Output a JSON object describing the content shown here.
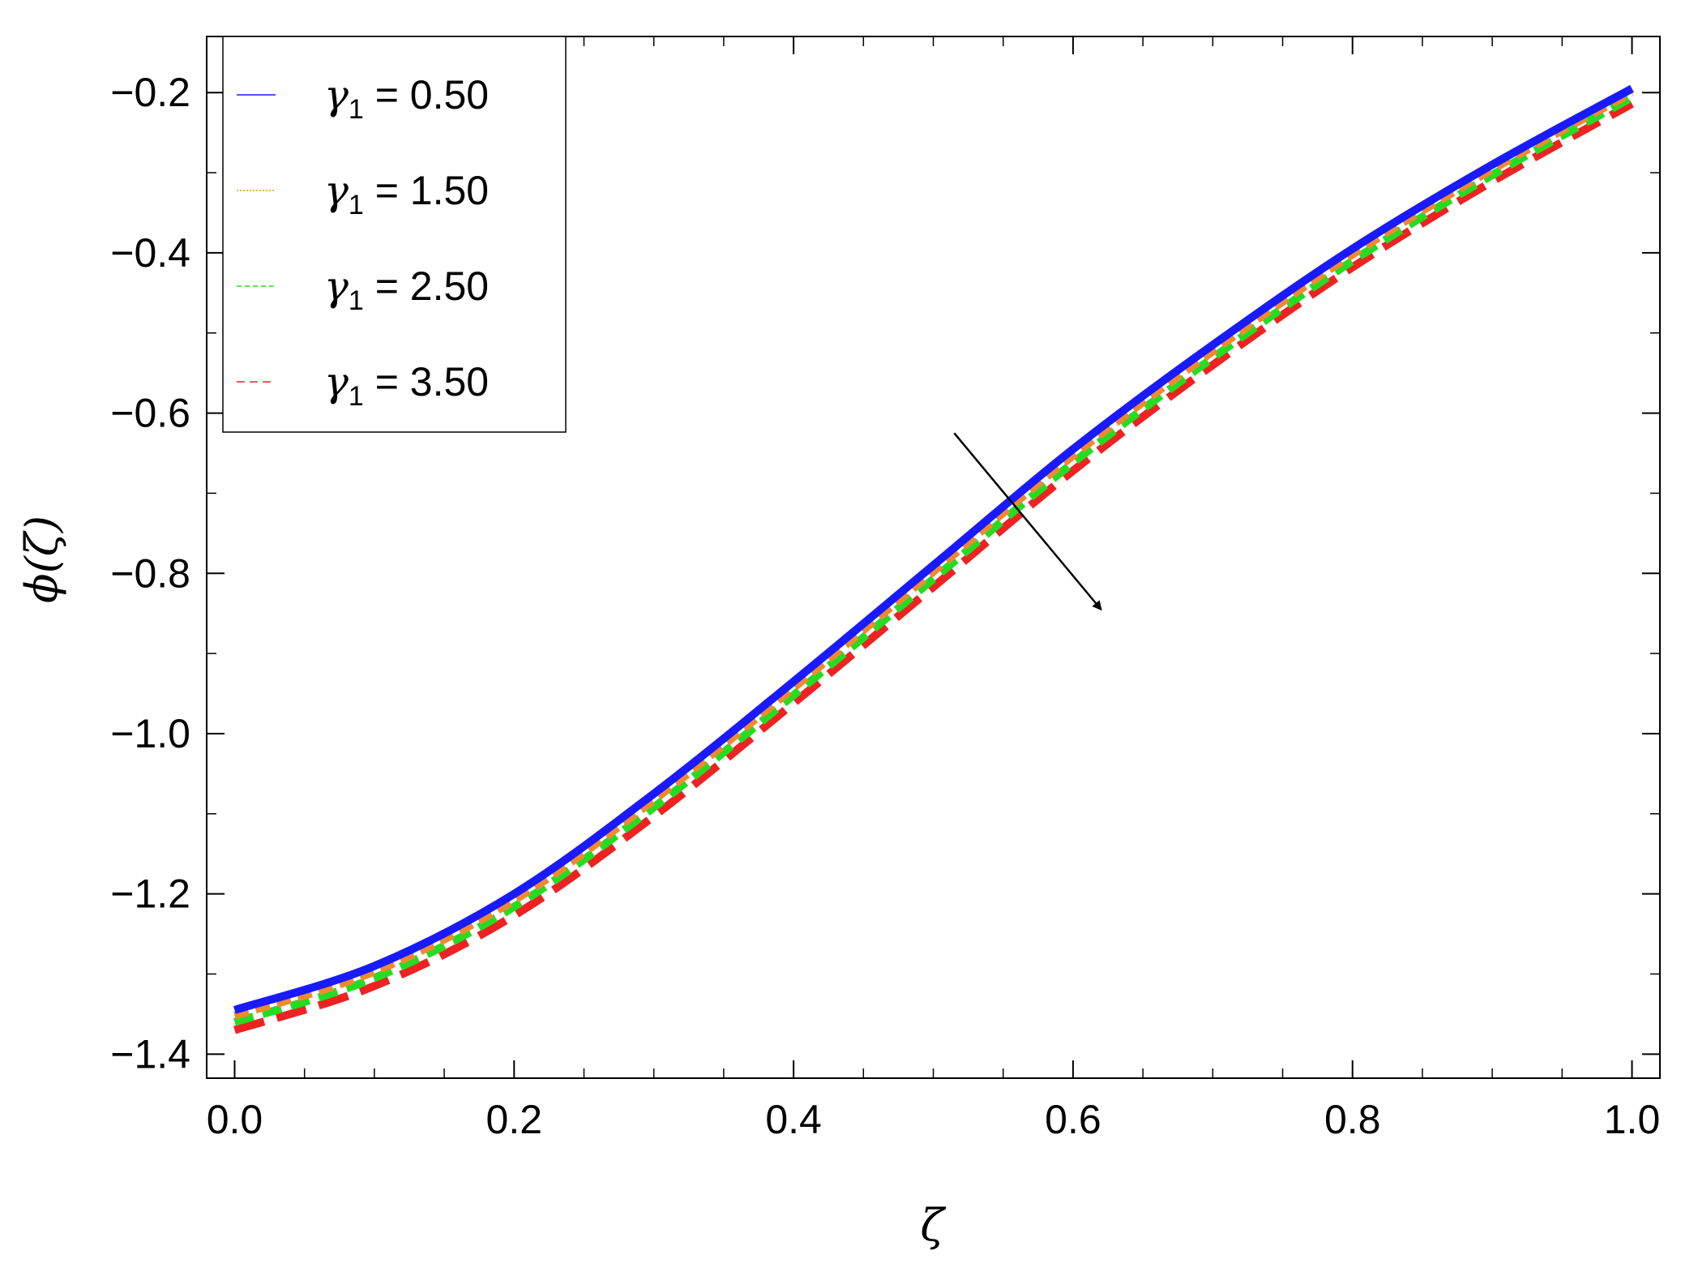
{
  "chart_data": {
    "type": "line",
    "xlabel": "ζ",
    "ylabel": "ϕ(ζ)",
    "xlim": [
      -0.02,
      1.02
    ],
    "ylim": [
      -1.43,
      -0.13
    ],
    "x_ticks": [
      0.0,
      0.2,
      0.4,
      0.6,
      0.8,
      1.0
    ],
    "x_tick_labels": [
      "0.0",
      "0.2",
      "0.4",
      "0.6",
      "0.8",
      "1.0"
    ],
    "y_ticks": [
      -1.4,
      -1.2,
      -1.0,
      -0.8,
      -0.6,
      -0.4,
      -0.2
    ],
    "y_tick_labels": [
      "−1.4",
      "−1.2",
      "−1.0",
      "−0.8",
      "−0.6",
      "−0.4",
      "−0.2"
    ],
    "grid": false,
    "legend_position": "top-left",
    "x": [
      0.0,
      0.1,
      0.2,
      0.3,
      0.4,
      0.5,
      0.6,
      0.7,
      0.8,
      0.9,
      1.0
    ],
    "series": [
      {
        "name": "γ1 = 0.50",
        "label_symbol": "γ",
        "label_sub": "1",
        "label_value": " = 0.50",
        "color": "#1a1aff",
        "style": "solid",
        "values": [
          -1.345,
          -1.29,
          -1.2,
          -1.075,
          -0.935,
          -0.79,
          -0.645,
          -0.515,
          -0.395,
          -0.29,
          -0.195
        ]
      },
      {
        "name": "γ1 = 1.50",
        "label_symbol": "γ",
        "label_sub": "1",
        "label_value": " = 1.50",
        "color": "#f08a2e",
        "style": "dotted",
        "values": [
          -1.352,
          -1.297,
          -1.208,
          -1.083,
          -0.943,
          -0.798,
          -0.653,
          -0.523,
          -0.402,
          -0.296,
          -0.2
        ]
      },
      {
        "name": "γ1 = 2.50",
        "label_symbol": "γ",
        "label_sub": "1",
        "label_value": " = 2.50",
        "color": "#22dd22",
        "style": "dashed-short",
        "values": [
          -1.36,
          -1.305,
          -1.216,
          -1.092,
          -0.952,
          -0.807,
          -0.662,
          -0.531,
          -0.41,
          -0.303,
          -0.206
        ]
      },
      {
        "name": "γ1 = 3.50",
        "label_symbol": "γ",
        "label_sub": "1",
        "label_value": " = 3.50",
        "color": "#ee2222",
        "style": "dashed",
        "values": [
          -1.37,
          -1.315,
          -1.227,
          -1.103,
          -0.962,
          -0.817,
          -0.672,
          -0.54,
          -0.418,
          -0.311,
          -0.214
        ]
      }
    ],
    "annotation": {
      "type": "arrow",
      "from": [
        0.515,
        -0.625
      ],
      "to": [
        0.62,
        -0.845
      ]
    }
  }
}
